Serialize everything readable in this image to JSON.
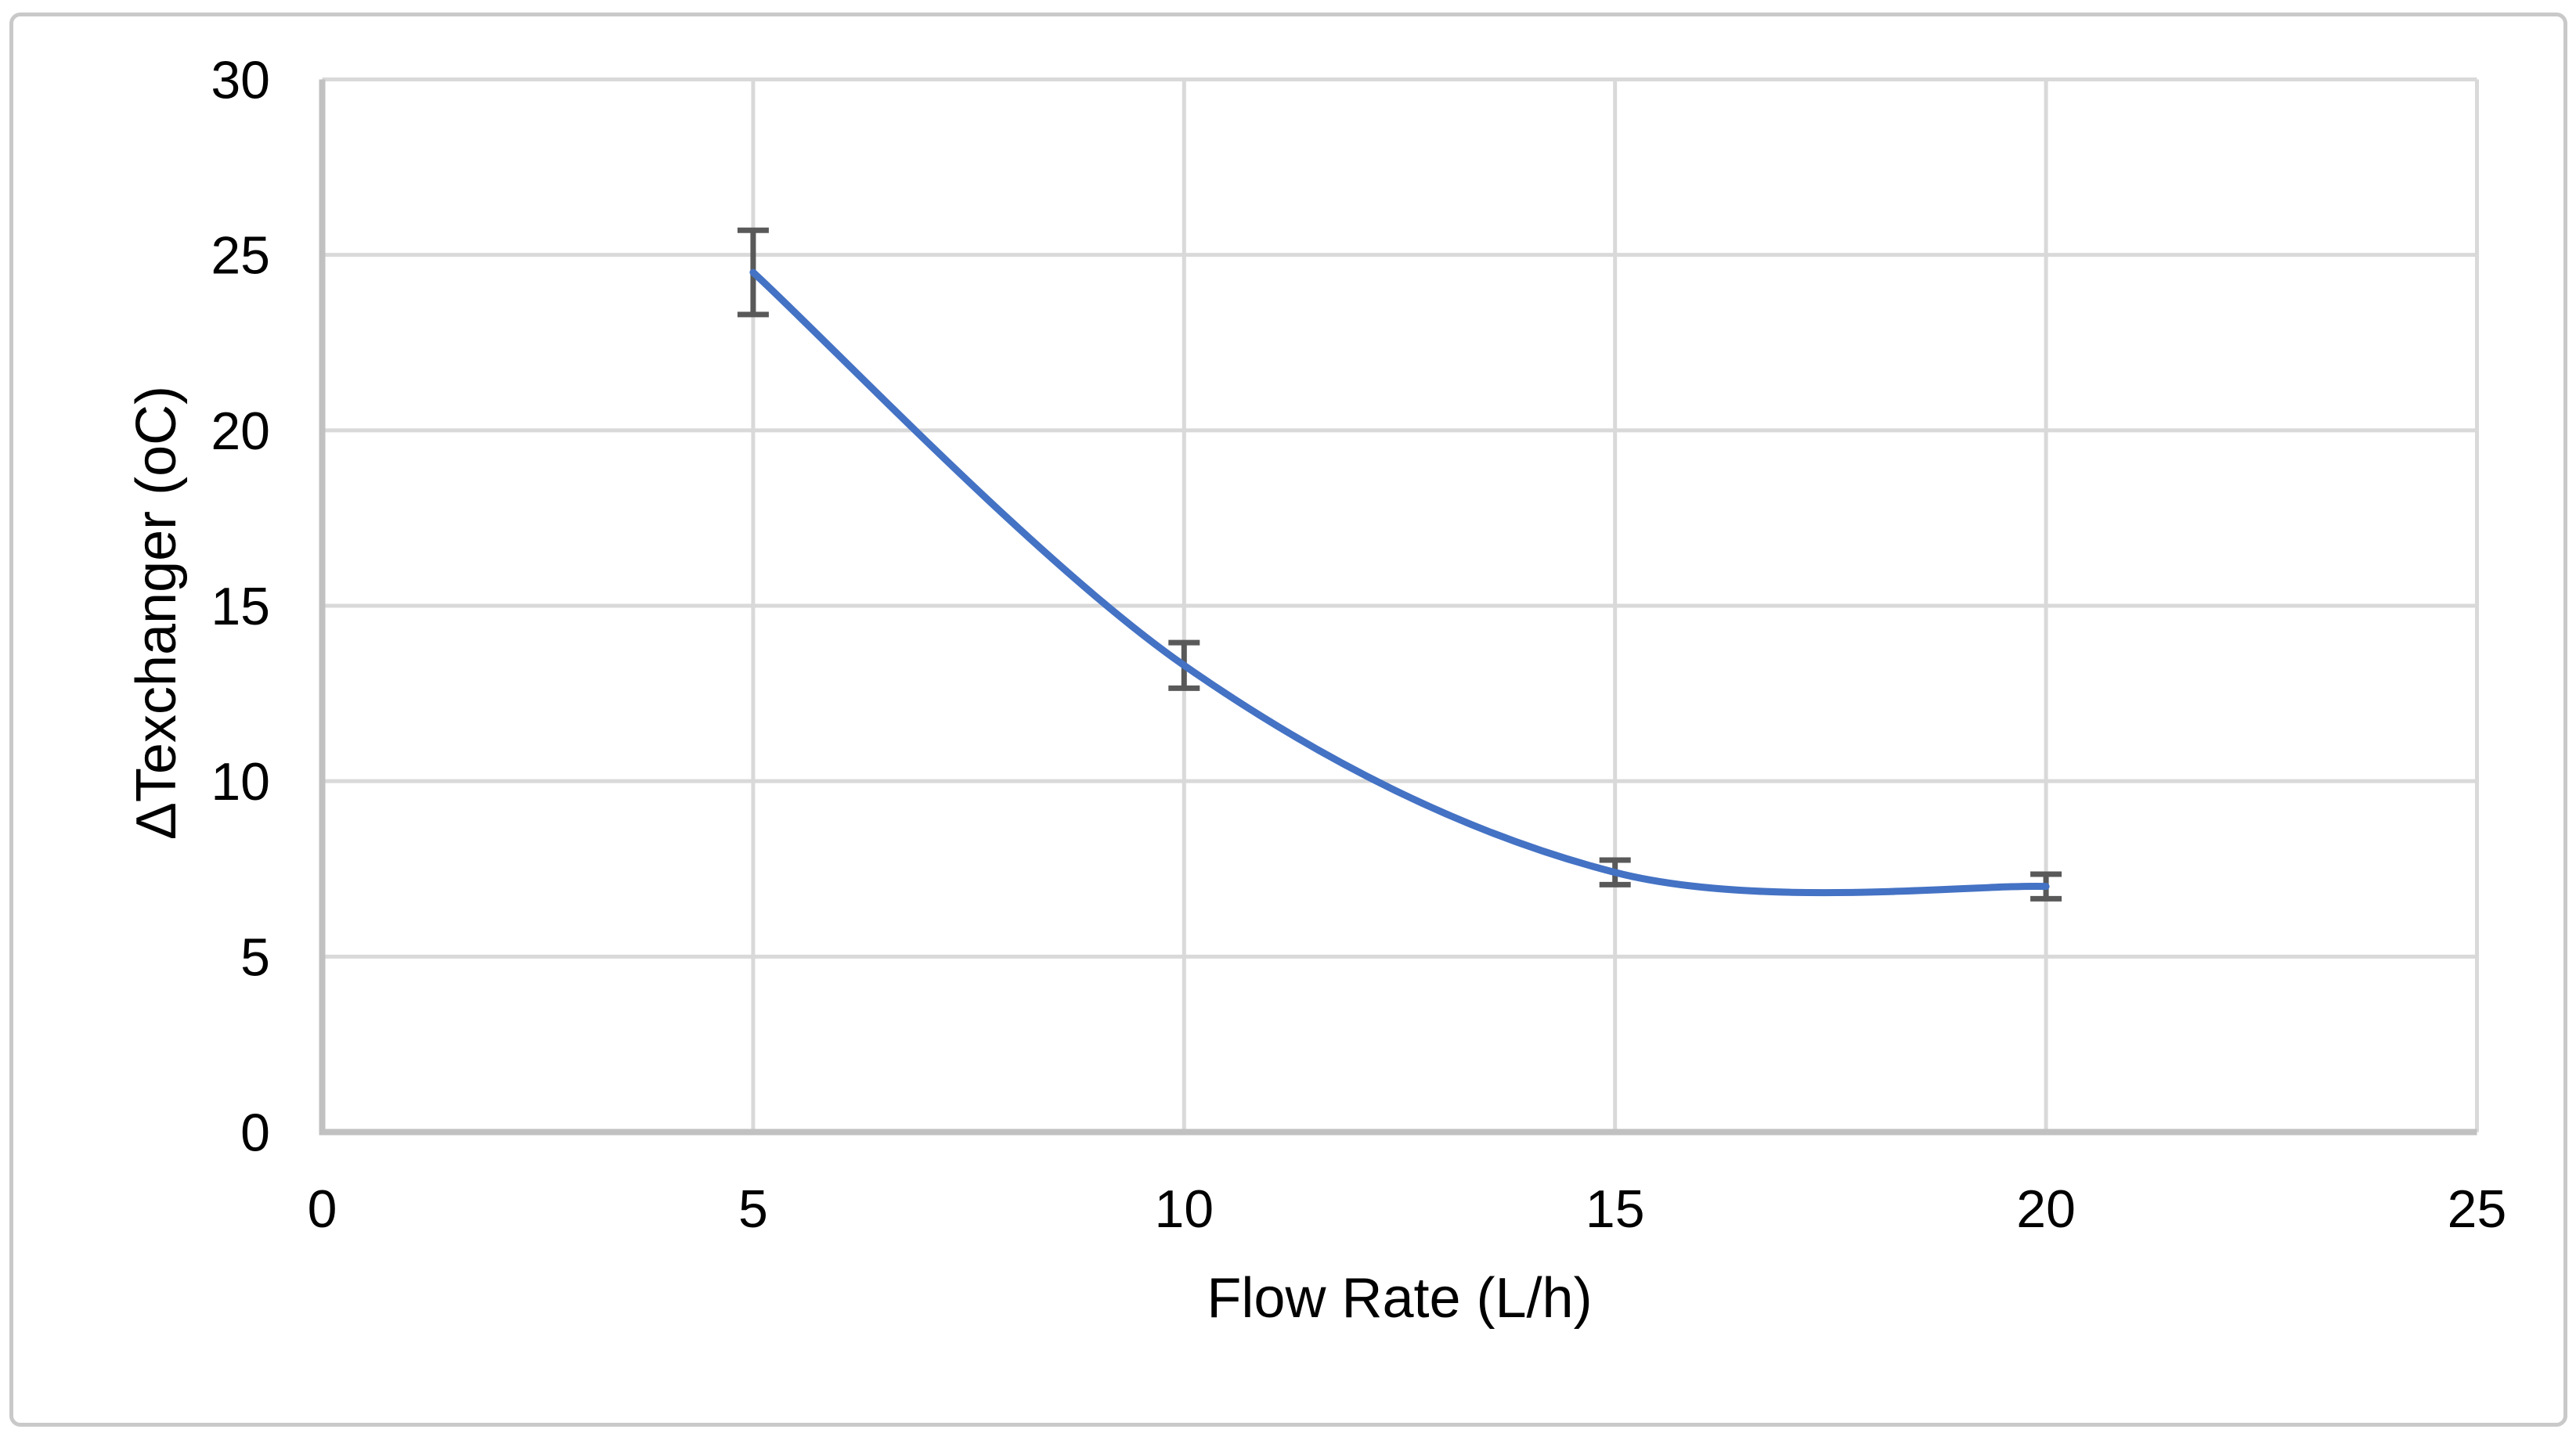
{
  "chart_data": {
    "type": "line",
    "smooth": true,
    "series": [
      {
        "x": [
          5,
          10,
          15,
          20
        ],
        "y": [
          24.5,
          13.3,
          7.4,
          7.0
        ],
        "y_error": [
          1.2,
          0.65,
          0.35,
          0.35
        ]
      }
    ],
    "title": "",
    "xlabel": "Flow Rate (L/h)",
    "ylabel": "ΔTexchanger (oC)",
    "xlim": [
      0,
      25
    ],
    "ylim": [
      0,
      30
    ],
    "xticks": [
      "0",
      "5",
      "10",
      "15",
      "20",
      "25"
    ],
    "yticks": [
      "0",
      "5",
      "10",
      "15",
      "20",
      "25",
      "30"
    ],
    "xtick_values": [
      0,
      5,
      10,
      15,
      20,
      25
    ],
    "ytick_values": [
      0,
      5,
      10,
      15,
      20,
      25,
      30
    ],
    "grid": true,
    "legend": false,
    "colors": {
      "line": "#4472C4",
      "error_bar": "#595959",
      "gridline": "#D9D9D9",
      "axis_line": "#C1C1C1",
      "frame_border": "#C9C9C9",
      "tick_text": "#000000",
      "background": "#FFFFFF"
    }
  }
}
